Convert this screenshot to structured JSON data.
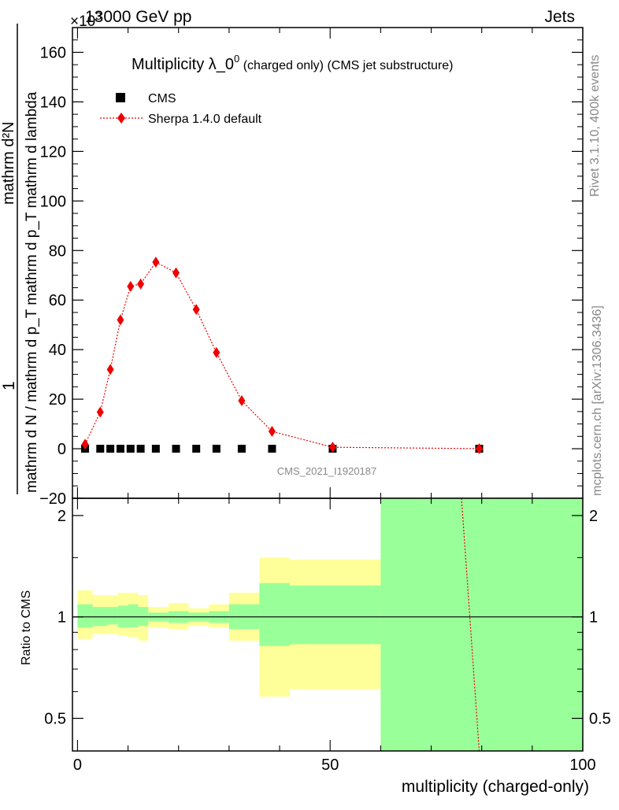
{
  "header": {
    "energy_label": "13000 GeV pp",
    "category_label": "Jets",
    "exponent_label": "×10",
    "exponent_power": "3"
  },
  "side_text": {
    "rivet": "Rivet 3.1.10,  400k events",
    "mcplots": "mcplots.cern.ch [arXiv:1306.3436]"
  },
  "watermark": "CMS_2021_I1920187",
  "colors": {
    "mc": "#ee0000",
    "band_yellow": "#ffff99",
    "band_green": "#99ff99",
    "data": "#000000"
  },
  "chart_data": [
    {
      "type": "scatter",
      "title": "Multiplicity λ_0",
      "title_sup": "0",
      "title_suffix": " (charged only) (CMS jet substructure)",
      "ylabel_top": "1",
      "ylabel_denominator": "mathrm d N / mathrm d p_T mathrm d p_T mathrm d lambda",
      "ylabel_numerator": "mathrm d²N",
      "xlabel": "",
      "xlim": [
        -1,
        100
      ],
      "ylim": [
        -20,
        170
      ],
      "yticks": [
        -20,
        0,
        20,
        40,
        60,
        80,
        100,
        120,
        140,
        160
      ],
      "legend_position": "top-left",
      "series": [
        {
          "name": "CMS",
          "marker": "square",
          "x": [
            1.5,
            4.5,
            6.5,
            8.5,
            10.5,
            12.5,
            15.5,
            19.5,
            23.5,
            27.5,
            32.5,
            38.5,
            50.5,
            79.5
          ],
          "y": [
            0,
            0,
            0,
            0,
            0,
            0,
            0,
            0,
            0,
            0,
            0,
            0,
            0,
            0
          ]
        },
        {
          "name": "Sherpa 1.4.0 default",
          "marker": "diamond",
          "line": "dotted",
          "x": [
            1.5,
            4.5,
            6.5,
            8.5,
            10.5,
            12.5,
            15.5,
            19.5,
            23.5,
            27.5,
            32.5,
            38.5,
            50.5,
            79.5
          ],
          "y": [
            1.8,
            14.8,
            32.0,
            52.0,
            65.5,
            66.5,
            75.3,
            71.0,
            56.2,
            38.8,
            19.4,
            7.0,
            0.6,
            0.03
          ],
          "yerr": [
            0.3,
            0.8,
            1.2,
            1.5,
            1.8,
            1.8,
            1.8,
            1.8,
            1.5,
            1.3,
            1.0,
            0.6,
            0.1,
            0.01
          ]
        }
      ]
    },
    {
      "type": "area",
      "ylabel": "Ratio to CMS",
      "xlabel": "multiplicity (charged-only)",
      "xlim": [
        -1,
        100
      ],
      "ylim": [
        0.4,
        2.25
      ],
      "log_y": true,
      "xticks": [
        0,
        50,
        100
      ],
      "yticks": [
        0.5,
        1,
        2
      ],
      "bands": [
        {
          "x0": 0,
          "x1": 3,
          "y_lo": 0.86,
          "y_hi": 1.2,
          "g_lo": 0.93,
          "g_hi": 1.09
        },
        {
          "x0": 3,
          "x1": 6,
          "y_lo": 0.89,
          "y_hi": 1.16,
          "g_lo": 0.94,
          "g_hi": 1.07
        },
        {
          "x0": 6,
          "x1": 8,
          "y_lo": 0.89,
          "y_hi": 1.16,
          "g_lo": 0.95,
          "g_hi": 1.07
        },
        {
          "x0": 8,
          "x1": 10,
          "y_lo": 0.88,
          "y_hi": 1.18,
          "g_lo": 0.93,
          "g_hi": 1.08
        },
        {
          "x0": 10,
          "x1": 12,
          "y_lo": 0.87,
          "y_hi": 1.18,
          "g_lo": 0.93,
          "g_hi": 1.09
        },
        {
          "x0": 12,
          "x1": 14,
          "y_lo": 0.85,
          "y_hi": 1.16,
          "g_lo": 0.94,
          "g_hi": 1.07
        },
        {
          "x0": 14,
          "x1": 18,
          "y_lo": 0.93,
          "y_hi": 1.07,
          "g_lo": 0.97,
          "g_hi": 1.03
        },
        {
          "x0": 18,
          "x1": 22,
          "y_lo": 0.92,
          "y_hi": 1.1,
          "g_lo": 0.96,
          "g_hi": 1.04
        },
        {
          "x0": 22,
          "x1": 26,
          "y_lo": 0.94,
          "y_hi": 1.06,
          "g_lo": 0.97,
          "g_hi": 1.03
        },
        {
          "x0": 26,
          "x1": 30,
          "y_lo": 0.93,
          "y_hi": 1.09,
          "g_lo": 0.96,
          "g_hi": 1.04
        },
        {
          "x0": 30,
          "x1": 36,
          "y_lo": 0.85,
          "y_hi": 1.18,
          "g_lo": 0.92,
          "g_hi": 1.09
        },
        {
          "x0": 36,
          "x1": 42,
          "y_lo": 0.58,
          "y_hi": 1.5,
          "g_lo": 0.82,
          "g_hi": 1.26
        },
        {
          "x0": 42,
          "x1": 60,
          "y_lo": 0.61,
          "y_hi": 1.48,
          "g_lo": 0.83,
          "g_hi": 1.24
        },
        {
          "x0": 60,
          "x1": 100,
          "y_lo": 0.4,
          "y_hi": 2.25,
          "g_lo": 0.4,
          "g_hi": 2.25
        }
      ],
      "reference_line": 1,
      "ratio_line": {
        "x": [
          76,
          79.5
        ],
        "y": [
          2.25,
          0.4
        ]
      }
    }
  ]
}
